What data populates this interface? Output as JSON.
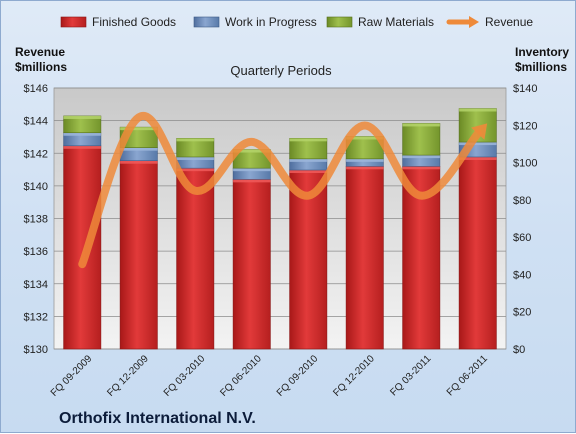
{
  "chart_data": {
    "type": "bar",
    "title": "Quarterly Periods",
    "footer": "Orthofix International N.V.",
    "categories": [
      "FQ 09-2009",
      "FQ 12-2009",
      "FQ 03-2010",
      "FQ 06-2010",
      "FQ 09-2010",
      "FQ 12-2010",
      "FQ 03-2011",
      "FQ 06-2011"
    ],
    "left_axis": {
      "label_line1": "Revenue",
      "label_line2": "$millions",
      "ylim": [
        130,
        146
      ],
      "ticks": [
        "$130",
        "$132",
        "$134",
        "$136",
        "$138",
        "$140",
        "$142",
        "$144",
        "$146"
      ]
    },
    "right_axis": {
      "label_line1": "Inventory",
      "label_line2": "$millions",
      "ylim": [
        0,
        140
      ],
      "ticks": [
        "$0",
        "$20",
        "$40",
        "$60",
        "$80",
        "$100",
        "$120",
        "$140"
      ]
    },
    "legend_position": "top",
    "series": [
      {
        "name": "Finished Goods",
        "axis": "right",
        "kind": "stacked-bar",
        "color": "#d42a2a",
        "values": [
          109,
          101,
          97,
          91,
          96,
          98,
          98,
          103
        ]
      },
      {
        "name": "Work in Progress",
        "axis": "right",
        "kind": "stacked-bar",
        "color": "#6f8fbf",
        "values": [
          7,
          7,
          6,
          6,
          6,
          4,
          6,
          8
        ]
      },
      {
        "name": "Raw Materials",
        "axis": "right",
        "kind": "stacked-bar",
        "color": "#88aa3c",
        "values": [
          9,
          11,
          10,
          10,
          11,
          12,
          17,
          18
        ]
      },
      {
        "name": "Revenue",
        "axis": "left",
        "kind": "line",
        "color": "#ee8a3a",
        "values": [
          135.2,
          144.2,
          139.7,
          142.7,
          139.4,
          143.7,
          139.4,
          143.2
        ]
      }
    ],
    "grid": true
  }
}
